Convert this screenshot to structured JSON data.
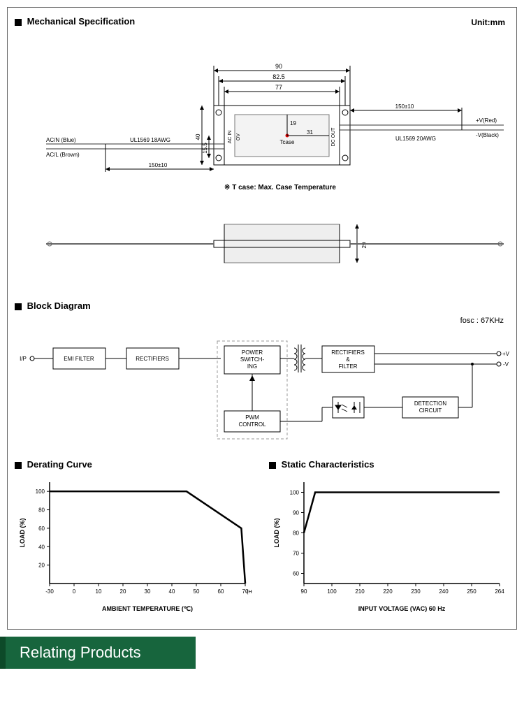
{
  "sections": {
    "mech": "Mechanical Specification",
    "block": "Block Diagram",
    "derating": "Derating Curve",
    "static": "Static Characteristics"
  },
  "unit_label": "Unit:mm",
  "fosc": "fosc : 67KHz",
  "relating": "Relating Products",
  "mechanical": {
    "dims": {
      "w_outer": "90",
      "w_mid": "82.5",
      "w_inner": "77",
      "h_40": "40",
      "h_15_5": "15.5",
      "d_19": "19",
      "d_31": "31",
      "d_29": "29",
      "lead_l": "150±10",
      "lead_r": "150±10"
    },
    "labels": {
      "ac_in": "AC IN",
      "dc_out": "DC OUT",
      "ov": "OV",
      "tcase": "Tcase",
      "note": "※ T case: Max. Case Temperature",
      "ul_left": "UL1569  18AWG",
      "ul_right": "UL1569  20AWG",
      "acn": "AC/N (Blue)",
      "acl": "AC/L (Brown)",
      "vred": "+V(Red)",
      "vblk": "-V(Black)"
    }
  },
  "block": {
    "ip": "I/P",
    "blocks": {
      "emi": "EMI FILTER",
      "rect1": "RECTIFIERS",
      "power": "POWER SWITCH-ING",
      "pwm": "PWM CONTROL",
      "rect2": "RECTIFIERS & FILTER",
      "detect": "DETECTION CIRCUIT"
    },
    "outputs": {
      "vp": "+V",
      "vm": "-V"
    }
  },
  "derating": {
    "xlabel": "AMBIENT TEMPERATURE (℃)",
    "ylabel": "LOAD (%)",
    "horiz": "(HORIZONTAL)",
    "xticks": [
      "-30",
      "0",
      "10",
      "20",
      "30",
      "40",
      "50",
      "60",
      "70"
    ],
    "yticks": [
      "20",
      "40",
      "60",
      "80",
      "100"
    ],
    "xlim": [
      -30,
      70
    ],
    "ylim": [
      0,
      110
    ],
    "points": [
      [
        -30,
        100
      ],
      [
        40,
        100
      ],
      [
        68,
        60
      ],
      [
        70,
        0
      ]
    ],
    "colors": {
      "line": "#000",
      "axis": "#000",
      "bg": "#fff"
    },
    "line_width": 2.5
  },
  "static": {
    "xlabel": "INPUT VOLTAGE (VAC) 60 Hz",
    "ylabel": "LOAD (%)",
    "xticks": [
      "90",
      "100",
      "210",
      "220",
      "230",
      "240",
      "250",
      "264"
    ],
    "yticks": [
      "60",
      "70",
      "80",
      "90",
      "100"
    ],
    "xlim": [
      90,
      264
    ],
    "ylim": [
      55,
      105
    ],
    "points": [
      [
        90,
        80
      ],
      [
        100,
        100
      ],
      [
        264,
        100
      ]
    ],
    "colors": {
      "line": "#000",
      "axis": "#000",
      "bg": "#fff"
    },
    "line_width": 2.5
  },
  "colors": {
    "box": "#000",
    "dash": "#888",
    "relating_bg": "#17653d",
    "relating_border": "#0d4a29"
  }
}
